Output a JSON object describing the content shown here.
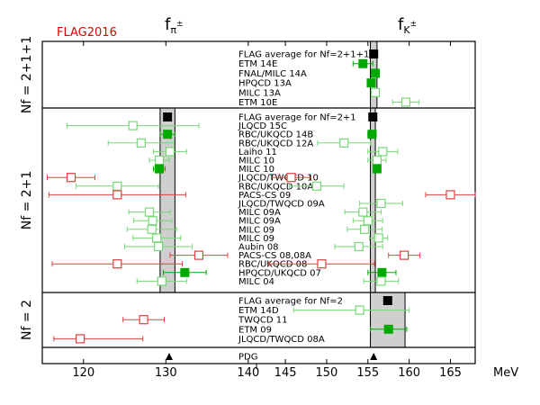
{
  "chart_data": {
    "type": "scatter",
    "title": "FLAG2016",
    "column_headers": [
      "fπ±",
      "fK±"
    ],
    "unit": "MeV",
    "pdg_label": "PDG",
    "x_ticks": [
      "120",
      "130",
      "140",
      "145",
      "150",
      "155",
      "160",
      "165"
    ],
    "x_axis": {
      "segments": [
        {
          "from": 115,
          "to": 141,
          "ticks": [
            120,
            130,
            140
          ]
        },
        {
          "from": 141.5,
          "to": 168,
          "ticks": [
            145,
            150,
            155,
            160,
            165
          ]
        }
      ]
    },
    "bands": {
      "pi": [
        129.3,
        131.1
      ],
      "K": [
        155.3,
        155.9
      ]
    },
    "sections": [
      {
        "label": "Nf = 2+1+1",
        "band_pi": false,
        "band_K": [
          155.3,
          156.1
        ],
        "entries": [
          {
            "name": "FLAG average for Nf=2+1+1",
            "kind": "avg",
            "K": 155.7
          },
          {
            "name": "ETM 14E",
            "kind": "full",
            "K": 154.4,
            "K_err": [
              153.2,
              155.6
            ]
          },
          {
            "name": "FNAL/MILC 14A",
            "kind": "full",
            "K": 155.9,
            "K_err": [
              155.5,
              156.3
            ]
          },
          {
            "name": "HPQCD 13A",
            "kind": "full",
            "K": 155.4,
            "K_err": [
              155.0,
              155.8
            ]
          },
          {
            "name": "MILC 13A",
            "kind": "open",
            "K": 155.9,
            "K_err": [
              155.5,
              156.3
            ]
          },
          {
            "name": "ETM 10E",
            "kind": "open",
            "K": 159.6,
            "K_err": [
              158.0,
              161.2
            ]
          }
        ]
      },
      {
        "label": "Nf = 2+1",
        "band_pi": [
          129.3,
          131.1
        ],
        "band_K": [
          155.3,
          155.9
        ],
        "entries": [
          {
            "name": "FLAG average for Nf=2+1",
            "kind": "avg",
            "pi": 130.2,
            "K": 155.6
          },
          {
            "name": "JLQCD 15C",
            "kind": "open",
            "pi": 126.0,
            "pi_err": [
              118.0,
              134.0
            ]
          },
          {
            "name": "RBC/UKQCD 14B",
            "kind": "full",
            "pi": 130.2,
            "pi_err": [
              129.3,
              131.1
            ],
            "K": 155.5,
            "K_err": [
              155.0,
              156.0
            ]
          },
          {
            "name": "RBC/UKQCD 12A",
            "kind": "open",
            "pi": 127.0,
            "pi_err": [
              123.0,
              131.0
            ],
            "K": 152.1,
            "K_err": [
              148.9,
              155.3
            ]
          },
          {
            "name": "Laiho 11",
            "kind": "open",
            "pi": 130.5,
            "pi_err": [
              128.5,
              132.5
            ],
            "K": 156.8,
            "K_err": [
              155.0,
              158.6
            ]
          },
          {
            "name": "MILC 10",
            "kind": "open",
            "pi": 129.2,
            "pi_err": [
              128.0,
              130.4
            ],
            "K": 156.1,
            "K_err": [
              155.0,
              157.2
            ]
          },
          {
            "name": "MILC 10",
            "kind": "full",
            "pi": 129.2,
            "pi_err": [
              128.5,
              129.9
            ],
            "K": 156.1,
            "K_err": [
              155.7,
              156.5
            ]
          },
          {
            "name": "JLQCD/TWQCD 10",
            "kind": "red",
            "pi": 118.5,
            "pi_err": [
              115.6,
              121.4
            ],
            "K": 145.7,
            "K_err": [
              143.3,
              148.1
            ]
          },
          {
            "name": "RBC/UKQCD 10A",
            "kind": "open",
            "pi": 124.1,
            "pi_err": [
              119.1,
              129.1
            ],
            "K": 148.8,
            "K_err": [
              145.5,
              152.1
            ]
          },
          {
            "name": "PACS-CS 09",
            "kind": "red",
            "pi": 124.1,
            "pi_err": [
              115.8,
              132.4
            ],
            "K": 165.0,
            "K_err": [
              162.0,
              168.0
            ]
          },
          {
            "name": "JLQCD/TWQCD 09A",
            "kind": "open",
            "K": 156.6,
            "K_err": [
              154.0,
              159.2
            ]
          },
          {
            "name": "MILC 09A",
            "kind": "open",
            "pi": 128.0,
            "pi_err": [
              125.5,
              130.5
            ],
            "K": 154.4,
            "K_err": [
              152.2,
              156.6
            ]
          },
          {
            "name": "MILC 09A",
            "kind": "open",
            "pi": 128.4,
            "pi_err": [
              126.1,
              130.7
            ],
            "K": 155.0,
            "K_err": [
              153.2,
              156.8
            ]
          },
          {
            "name": "MILC 09",
            "kind": "open",
            "pi": 128.3,
            "pi_err": [
              125.3,
              131.3
            ],
            "K": 154.6,
            "K_err": [
              152.5,
              156.7
            ]
          },
          {
            "name": "MILC 09",
            "kind": "open",
            "pi": 128.9,
            "pi_err": [
              126.0,
              131.8
            ],
            "K": 156.3,
            "K_err": [
              155.2,
              157.4
            ]
          },
          {
            "name": "Aubin 08",
            "kind": "open",
            "pi": 129.1,
            "pi_err": [
              125.0,
              133.2
            ],
            "K": 153.9,
            "K_err": [
              151.0,
              156.8
            ]
          },
          {
            "name": "PACS-CS 08,08A",
            "kind": "red",
            "pi": 134.0,
            "pi_err": [
              130.5,
              137.5
            ],
            "K": 159.4,
            "K_err": [
              157.5,
              161.3
            ]
          },
          {
            "name": "RBC/UKQCD 08",
            "kind": "red",
            "pi": 124.1,
            "pi_err": [
              116.2,
              132.0
            ],
            "K": 149.4,
            "K_err": [
              143.0,
              155.8
            ]
          },
          {
            "name": "HPQCD/UKQCD 07",
            "kind": "full",
            "pi": 132.3,
            "pi_err": [
              129.7,
              134.9
            ],
            "K": 156.7,
            "K_err": [
              155.0,
              158.4
            ]
          },
          {
            "name": "MILC 04",
            "kind": "open",
            "pi": 129.5,
            "pi_err": [
              126.5,
              132.5
            ],
            "K": 156.6,
            "K_err": [
              154.5,
              158.7
            ]
          }
        ]
      },
      {
        "label": "Nf = 2",
        "band_pi": false,
        "band_K": [
          155.3,
          159.5
        ],
        "entries": [
          {
            "name": "FLAG average for Nf=2",
            "kind": "avg",
            "K": 157.4
          },
          {
            "name": "ETM 14D",
            "kind": "open",
            "K": 154.0,
            "K_err": [
              146.0,
              160.0
            ]
          },
          {
            "name": "TWQCD 11",
            "kind": "red",
            "pi": 127.3,
            "pi_err": [
              124.8,
              129.8
            ]
          },
          {
            "name": "ETM 09",
            "kind": "full",
            "K": 157.5,
            "K_err": [
              155.3,
              159.7
            ]
          },
          {
            "name": "JLQCD/TWQCD 08A",
            "kind": "red",
            "pi": 119.6,
            "pi_err": [
              116.4,
              127.2
            ]
          }
        ]
      }
    ],
    "pdg": {
      "pi": 130.4,
      "K": 155.7
    },
    "colors": {
      "full": "#00a800",
      "open": "#76d876",
      "red": "#e04040",
      "avg": "#000000",
      "band_fill": "#cfcfcf",
      "flag_text": "#ff0000"
    }
  }
}
